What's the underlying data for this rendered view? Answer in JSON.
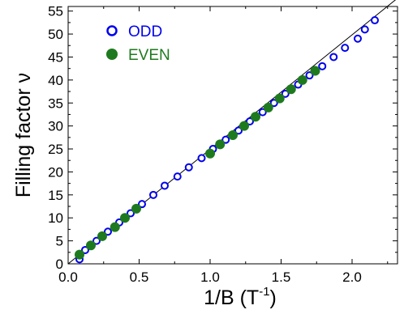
{
  "chart_data": {
    "type": "scatter",
    "xlabel": "1/B (T",
    "xlabel_sup": "-1",
    "xlabel_close": ")",
    "ylabel": "Filling factor ν",
    "xlim": [
      0.0,
      2.32
    ],
    "ylim": [
      0,
      56
    ],
    "x_ticks": [
      {
        "value": 0.0,
        "label": "0.0"
      },
      {
        "value": 0.5,
        "label": "0.5"
      },
      {
        "value": 1.0,
        "label": "1.0"
      },
      {
        "value": 1.5,
        "label": "1.5"
      },
      {
        "value": 2.0,
        "label": "2.0"
      }
    ],
    "x_minor_ticks": [
      0.25,
      0.75,
      1.25,
      1.75,
      2.25
    ],
    "y_ticks": [
      {
        "value": 0,
        "label": "0"
      },
      {
        "value": 5,
        "label": "5"
      },
      {
        "value": 10,
        "label": "10"
      },
      {
        "value": 15,
        "label": "15"
      },
      {
        "value": 20,
        "label": "20"
      },
      {
        "value": 25,
        "label": "25"
      },
      {
        "value": 30,
        "label": "30"
      },
      {
        "value": 35,
        "label": "35"
      },
      {
        "value": 40,
        "label": "40"
      },
      {
        "value": 45,
        "label": "45"
      },
      {
        "value": 50,
        "label": "50"
      },
      {
        "value": 55,
        "label": "55"
      }
    ],
    "fit_line": {
      "x": [
        0.0,
        2.32
      ],
      "y": [
        0.0,
        57.8
      ],
      "color": "#000000"
    },
    "legend_position": "top-left",
    "series": [
      {
        "name": "ODD",
        "marker": "open-circle",
        "color": "#0000ee",
        "points": [
          {
            "x": 0.08,
            "y": 1
          },
          {
            "x": 0.12,
            "y": 3
          },
          {
            "x": 0.2,
            "y": 5
          },
          {
            "x": 0.28,
            "y": 7
          },
          {
            "x": 0.36,
            "y": 9
          },
          {
            "x": 0.44,
            "y": 11
          },
          {
            "x": 0.52,
            "y": 13
          },
          {
            "x": 0.6,
            "y": 15
          },
          {
            "x": 0.68,
            "y": 17
          },
          {
            "x": 0.77,
            "y": 19
          },
          {
            "x": 0.85,
            "y": 21
          },
          {
            "x": 0.94,
            "y": 23
          },
          {
            "x": 1.02,
            "y": 25
          },
          {
            "x": 1.11,
            "y": 27
          },
          {
            "x": 1.2,
            "y": 29
          },
          {
            "x": 1.28,
            "y": 31
          },
          {
            "x": 1.37,
            "y": 33
          },
          {
            "x": 1.45,
            "y": 35
          },
          {
            "x": 1.53,
            "y": 37
          },
          {
            "x": 1.62,
            "y": 39
          },
          {
            "x": 1.7,
            "y": 41
          },
          {
            "x": 1.79,
            "y": 43
          },
          {
            "x": 1.87,
            "y": 45
          },
          {
            "x": 1.95,
            "y": 47
          },
          {
            "x": 2.04,
            "y": 49
          },
          {
            "x": 2.09,
            "y": 51
          },
          {
            "x": 2.16,
            "y": 53
          }
        ]
      },
      {
        "name": "EVEN",
        "marker": "filled-circle",
        "color": "#1e7a1e",
        "points": [
          {
            "x": 0.08,
            "y": 2
          },
          {
            "x": 0.16,
            "y": 4
          },
          {
            "x": 0.24,
            "y": 6
          },
          {
            "x": 0.33,
            "y": 8
          },
          {
            "x": 0.4,
            "y": 10
          },
          {
            "x": 0.48,
            "y": 12
          },
          {
            "x": 1.0,
            "y": 24
          },
          {
            "x": 1.07,
            "y": 26
          },
          {
            "x": 1.16,
            "y": 28
          },
          {
            "x": 1.24,
            "y": 30
          },
          {
            "x": 1.32,
            "y": 32
          },
          {
            "x": 1.41,
            "y": 34
          },
          {
            "x": 1.49,
            "y": 36
          },
          {
            "x": 1.57,
            "y": 38
          },
          {
            "x": 1.65,
            "y": 40
          },
          {
            "x": 1.74,
            "y": 42
          }
        ]
      }
    ]
  }
}
